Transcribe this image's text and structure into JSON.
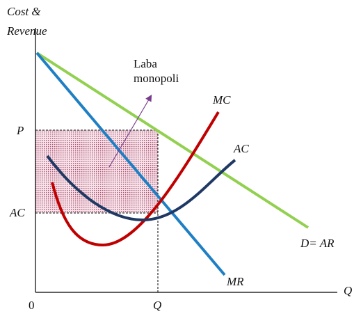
{
  "axes": {
    "y_label_line1": "Cost &",
    "y_label_line2": "Revenue",
    "origin": "0",
    "x_label": "Q"
  },
  "levels": {
    "price": "P",
    "average_cost": "AC",
    "quantity": "Q"
  },
  "curves": {
    "marginal_cost": "MC",
    "average_cost": "AC",
    "demand": "D= AR",
    "marginal_revenue": "MR"
  },
  "annotation": {
    "line1": "Laba",
    "line2": "monopoli"
  }
}
